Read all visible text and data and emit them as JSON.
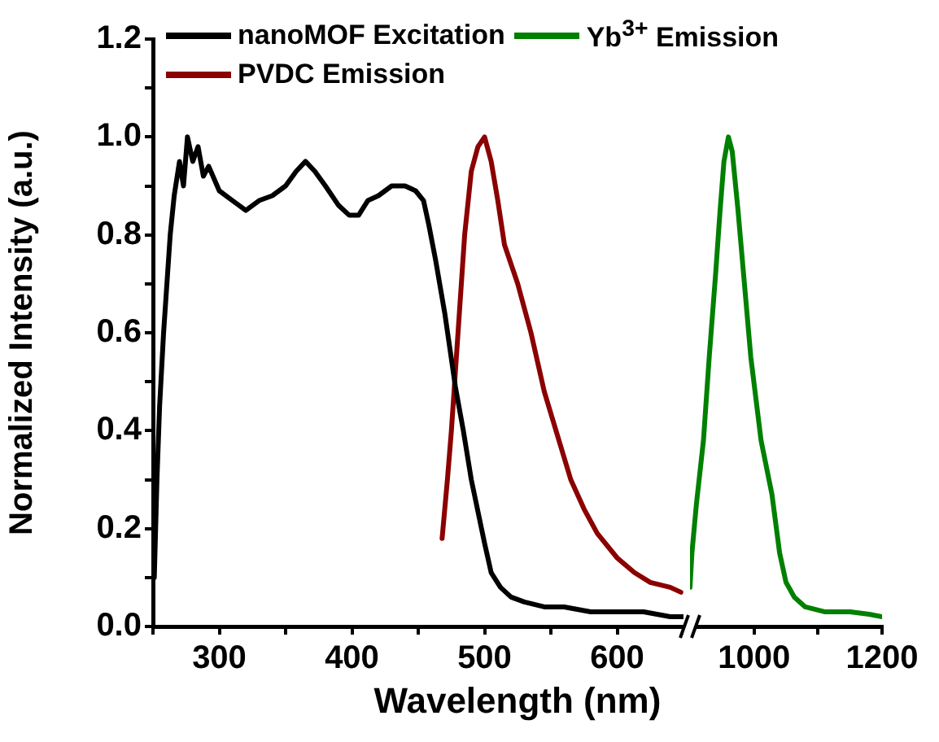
{
  "chart_data": [
    {
      "type": "line",
      "ylabel": "Normalized Intensity (a.u.)",
      "xlabel": "Wavelength (nm)",
      "xlim": [
        250,
        650
      ],
      "ylim": [
        0,
        1.2
      ],
      "xticks": [
        {
          "value": 250,
          "label": null
        },
        300,
        {
          "value": 350,
          "label": null
        },
        400,
        {
          "value": 450,
          "label": null
        },
        500,
        {
          "value": 550,
          "label": null
        },
        600,
        {
          "value": 650,
          "label": null
        }
      ],
      "yticks": [
        {
          "value": 0,
          "label": "0.0"
        },
        {
          "value": 0.1,
          "label": null
        },
        0.2,
        {
          "value": 0.3,
          "label": null
        },
        0.4,
        {
          "value": 0.5,
          "label": null
        },
        0.6,
        {
          "value": 0.7,
          "label": null
        },
        0.8,
        {
          "value": 0.9,
          "label": null
        },
        {
          "value": 1.0,
          "label": "1.0"
        },
        {
          "value": 1.1,
          "label": null
        },
        1.2
      ],
      "grid": false,
      "legend": "top",
      "marker": "none",
      "line_style": "solid",
      "series": [
        {
          "name": "nanoMOF Excitation",
          "color": "#000000",
          "x": [
            251,
            253,
            255,
            258,
            260,
            263,
            266,
            270,
            273,
            276,
            280,
            284,
            288,
            292,
            300,
            310,
            320,
            330,
            340,
            350,
            358,
            365,
            372,
            380,
            390,
            398,
            405,
            412,
            420,
            430,
            440,
            448,
            454,
            458,
            463,
            470,
            478,
            484,
            490,
            500,
            505,
            512,
            520,
            530,
            545,
            560,
            580,
            600,
            620,
            640,
            650
          ],
          "values": [
            0.1,
            0.3,
            0.45,
            0.6,
            0.68,
            0.8,
            0.88,
            0.95,
            0.9,
            1.0,
            0.95,
            0.98,
            0.92,
            0.94,
            0.89,
            0.87,
            0.85,
            0.87,
            0.88,
            0.9,
            0.93,
            0.95,
            0.93,
            0.9,
            0.86,
            0.84,
            0.84,
            0.87,
            0.88,
            0.9,
            0.9,
            0.89,
            0.87,
            0.82,
            0.75,
            0.64,
            0.49,
            0.4,
            0.3,
            0.17,
            0.11,
            0.08,
            0.06,
            0.05,
            0.04,
            0.04,
            0.03,
            0.03,
            0.03,
            0.02,
            0.02
          ]
        },
        {
          "name": "PVDC Emission",
          "color": "#8b0000",
          "x": [
            468,
            472,
            475,
            480,
            485,
            490,
            495,
            500,
            505,
            510,
            515,
            525,
            535,
            545,
            555,
            565,
            575,
            585,
            600,
            613,
            625,
            640,
            648
          ],
          "values": [
            0.18,
            0.3,
            0.4,
            0.6,
            0.8,
            0.93,
            0.98,
            1.0,
            0.95,
            0.87,
            0.78,
            0.7,
            0.6,
            0.48,
            0.39,
            0.3,
            0.24,
            0.19,
            0.14,
            0.11,
            0.09,
            0.08,
            0.07
          ]
        }
      ]
    },
    {
      "type": "line",
      "xlim": [
        900,
        1200
      ],
      "ylim": [
        0,
        1.2
      ],
      "xticks": [
        1000,
        {
          "value": 1100,
          "label": null
        },
        1200
      ],
      "tick_labels": "x",
      "grid": false,
      "legend": "top",
      "marker": "none",
      "line_style": "solid",
      "series": [
        {
          "name": "Yb$^{3+}$ Emission",
          "color": "#008000",
          "x": [
            900,
            903,
            910,
            921,
            930,
            940,
            947,
            953,
            960,
            966,
            975,
            985,
            995,
            1011,
            1028,
            1040,
            1050,
            1063,
            1080,
            1110,
            1150,
            1180,
            1200
          ],
          "values": [
            0.08,
            0.15,
            0.25,
            0.38,
            0.55,
            0.72,
            0.85,
            0.95,
            1.0,
            0.97,
            0.85,
            0.7,
            0.55,
            0.38,
            0.27,
            0.15,
            0.09,
            0.06,
            0.04,
            0.03,
            0.03,
            0.025,
            0.02
          ]
        }
      ]
    }
  ]
}
